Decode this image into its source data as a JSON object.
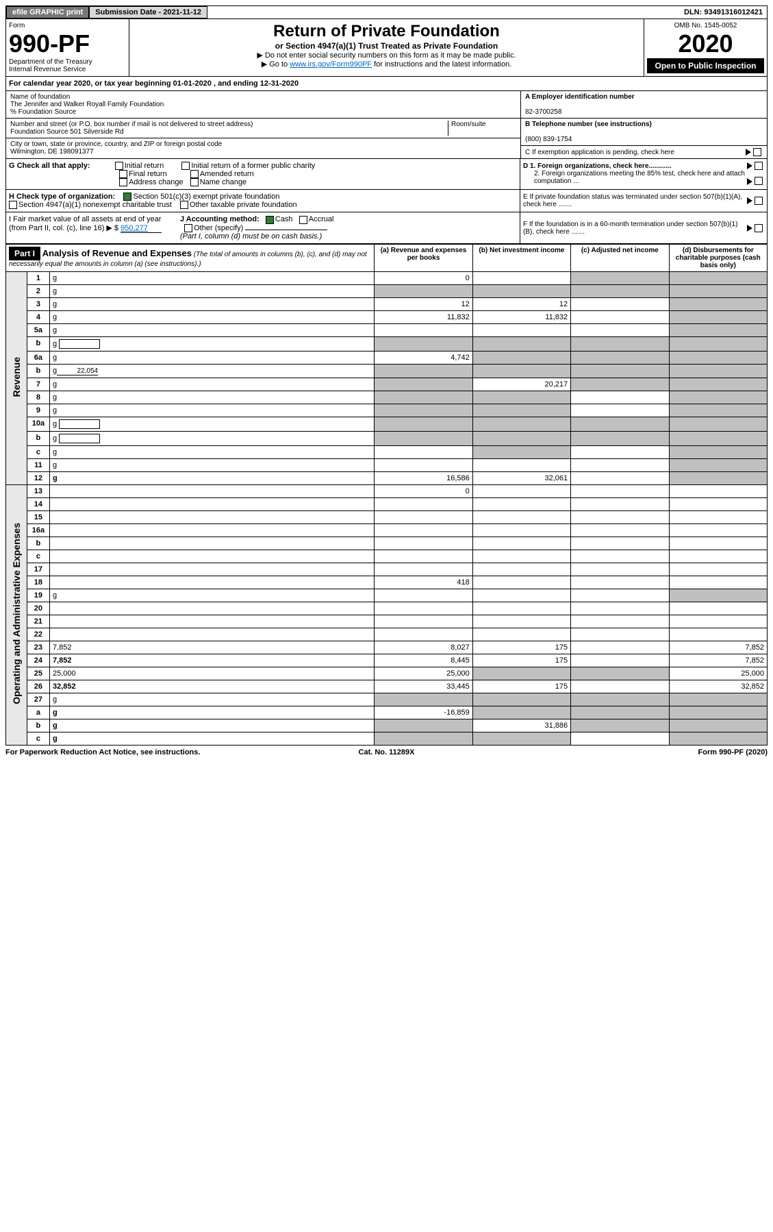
{
  "topbar": {
    "efile": "efile GRAPHIC print",
    "sub_date_label": "Submission Date - 2021-11-12",
    "dln": "DLN: 93491316012421"
  },
  "header": {
    "form_label": "Form",
    "form_no": "990-PF",
    "dept": "Department of the Treasury",
    "irs": "Internal Revenue Service",
    "title": "Return of Private Foundation",
    "subtitle": "or Section 4947(a)(1) Trust Treated as Private Foundation",
    "note1": "▶ Do not enter social security numbers on this form as it may be made public.",
    "note2_pre": "▶ Go to ",
    "note2_link": "www.irs.gov/Form990PF",
    "note2_post": " for instructions and the latest information.",
    "omb": "OMB No. 1545-0052",
    "year": "2020",
    "open": "Open to Public Inspection"
  },
  "cal_year": "For calendar year 2020, or tax year beginning 01-01-2020  , and ending 12-31-2020",
  "info": {
    "name_label": "Name of foundation",
    "name": "The Jennifer and Walker Royall Family Foundation",
    "care_of": "% Foundation Source",
    "addr_label": "Number and street (or P.O. box number if mail is not delivered to street address)",
    "addr": "Foundation Source 501 Silverside Rd",
    "room_label": "Room/suite",
    "city_label": "City or town, state or province, country, and ZIP or foreign postal code",
    "city": "Wilmington, DE  198091377",
    "a_label": "A Employer identification number",
    "a_val": "82-3700258",
    "b_label": "B Telephone number (see instructions)",
    "b_val": "(800) 839-1754",
    "c_label": "C If exemption application is pending, check here",
    "d1": "D 1. Foreign organizations, check here............",
    "d2": "2. Foreign organizations meeting the 85% test, check here and attach computation ...",
    "e": "E  If private foundation status was terminated under section 507(b)(1)(A), check here .......",
    "f": "F  If the foundation is in a 60-month termination under section 507(b)(1)(B), check here .......",
    "g_label": "G Check all that apply:",
    "g_opts": [
      "Initial return",
      "Initial return of a former public charity",
      "Final return",
      "Amended return",
      "Address change",
      "Name change"
    ],
    "h_label": "H Check type of organization:",
    "h_opt1": "Section 501(c)(3) exempt private foundation",
    "h_opt2": "Section 4947(a)(1) nonexempt charitable trust",
    "h_opt3": "Other taxable private foundation",
    "i_label": "I Fair market value of all assets at end of year (from Part II, col. (c), line 16) ▶ $",
    "i_val": "950,277",
    "j_label": "J Accounting method:",
    "j_cash": "Cash",
    "j_accrual": "Accrual",
    "j_other": "Other (specify)",
    "j_note": "(Part I, column (d) must be on cash basis.)"
  },
  "part1": {
    "label": "Part I",
    "title": "Analysis of Revenue and Expenses",
    "subtitle": "(The total of amounts in columns (b), (c), and (d) may not necessarily equal the amounts in column (a) (see instructions).)",
    "cols": {
      "a": "(a)  Revenue and expenses per books",
      "b": "(b)  Net investment income",
      "c": "(c)  Adjusted net income",
      "d": "(d)  Disbursements for charitable purposes (cash basis only)"
    }
  },
  "side_labels": {
    "revenue": "Revenue",
    "expenses": "Operating and Administrative Expenses"
  },
  "rows": [
    {
      "n": "1",
      "d": "g",
      "a": "0",
      "b": "",
      "c": "g"
    },
    {
      "n": "2",
      "d": "g",
      "a": "g",
      "b": "g",
      "c": "g"
    },
    {
      "n": "3",
      "d": "g",
      "a": "12",
      "b": "12",
      "c": ""
    },
    {
      "n": "4",
      "d": "g",
      "a": "11,832",
      "b": "11,832",
      "c": ""
    },
    {
      "n": "5a",
      "d": "g",
      "a": "",
      "b": "",
      "c": ""
    },
    {
      "n": "b",
      "d": "g",
      "a": "g",
      "b": "g",
      "c": "g",
      "sub": true
    },
    {
      "n": "6a",
      "d": "g",
      "a": "4,742",
      "b": "g",
      "c": "g"
    },
    {
      "n": "b",
      "d": "g",
      "a": "g",
      "b": "g",
      "c": "g",
      "subval": "22,054"
    },
    {
      "n": "7",
      "d": "g",
      "a": "g",
      "b": "20,217",
      "c": "g"
    },
    {
      "n": "8",
      "d": "g",
      "a": "g",
      "b": "g",
      "c": ""
    },
    {
      "n": "9",
      "d": "g",
      "a": "g",
      "b": "g",
      "c": ""
    },
    {
      "n": "10a",
      "d": "g",
      "a": "g",
      "b": "g",
      "c": "g",
      "sub": true
    },
    {
      "n": "b",
      "d": "g",
      "a": "g",
      "b": "g",
      "c": "g",
      "sub": true
    },
    {
      "n": "c",
      "d": "g",
      "a": "",
      "b": "g",
      "c": ""
    },
    {
      "n": "11",
      "d": "g",
      "a": "",
      "b": "",
      "c": ""
    },
    {
      "n": "12",
      "d": "g",
      "a": "16,586",
      "b": "32,061",
      "c": "",
      "bold": true
    },
    {
      "n": "13",
      "d": "",
      "a": "0",
      "b": "",
      "c": ""
    },
    {
      "n": "14",
      "d": "",
      "a": "",
      "b": "",
      "c": ""
    },
    {
      "n": "15",
      "d": "",
      "a": "",
      "b": "",
      "c": ""
    },
    {
      "n": "16a",
      "d": "",
      "a": "",
      "b": "",
      "c": ""
    },
    {
      "n": "b",
      "d": "",
      "a": "",
      "b": "",
      "c": ""
    },
    {
      "n": "c",
      "d": "",
      "a": "",
      "b": "",
      "c": ""
    },
    {
      "n": "17",
      "d": "",
      "a": "",
      "b": "",
      "c": ""
    },
    {
      "n": "18",
      "d": "",
      "a": "418",
      "b": "",
      "c": ""
    },
    {
      "n": "19",
      "d": "g",
      "a": "",
      "b": "",
      "c": ""
    },
    {
      "n": "20",
      "d": "",
      "a": "",
      "b": "",
      "c": ""
    },
    {
      "n": "21",
      "d": "",
      "a": "",
      "b": "",
      "c": ""
    },
    {
      "n": "22",
      "d": "",
      "a": "",
      "b": "",
      "c": ""
    },
    {
      "n": "23",
      "d": "7,852",
      "a": "8,027",
      "b": "175",
      "c": ""
    },
    {
      "n": "24",
      "d": "7,852",
      "a": "8,445",
      "b": "175",
      "c": "",
      "bold": true
    },
    {
      "n": "25",
      "d": "25,000",
      "a": "25,000",
      "b": "g",
      "c": "g"
    },
    {
      "n": "26",
      "d": "32,852",
      "a": "33,445",
      "b": "175",
      "c": "",
      "bold": true
    },
    {
      "n": "27",
      "d": "g",
      "a": "g",
      "b": "g",
      "c": "g"
    },
    {
      "n": "a",
      "d": "g",
      "a": "-16,859",
      "b": "g",
      "c": "g",
      "bold": true
    },
    {
      "n": "b",
      "d": "g",
      "a": "g",
      "b": "31,886",
      "c": "g",
      "bold": true
    },
    {
      "n": "c",
      "d": "g",
      "a": "g",
      "b": "g",
      "c": "",
      "bold": true
    }
  ],
  "footer": {
    "left": "For Paperwork Reduction Act Notice, see instructions.",
    "mid": "Cat. No. 11289X",
    "right": "Form 990-PF (2020)"
  }
}
